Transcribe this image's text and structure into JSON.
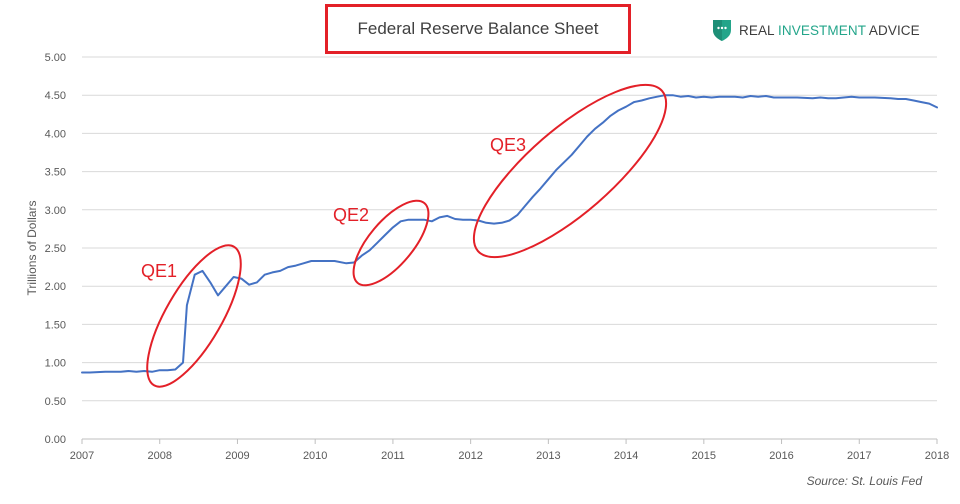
{
  "chart_data": {
    "type": "line",
    "title": "Federal Reserve Balance Sheet",
    "ylabel": "Trillions of Dollars",
    "xlabel": "",
    "xlim": [
      2007,
      2018
    ],
    "ylim": [
      0,
      5
    ],
    "x_ticks": [
      "2007",
      "2008",
      "2009",
      "2010",
      "2011",
      "2012",
      "2013",
      "2014",
      "2015",
      "2016",
      "2017",
      "2018"
    ],
    "y_ticks": [
      "0.00",
      "0.50",
      "1.00",
      "1.50",
      "2.00",
      "2.50",
      "3.00",
      "3.50",
      "4.00",
      "4.50",
      "5.00"
    ],
    "grid": "horizontal",
    "series": [
      {
        "color": "#4472c4",
        "x": [
          2007.0,
          2007.1,
          2007.3,
          2007.5,
          2007.6,
          2007.7,
          2007.8,
          2007.9,
          2008.0,
          2008.1,
          2008.2,
          2008.3,
          2008.35,
          2008.45,
          2008.55,
          2008.65,
          2008.75,
          2008.85,
          2008.95,
          2009.05,
          2009.15,
          2009.25,
          2009.35,
          2009.45,
          2009.55,
          2009.65,
          2009.75,
          2009.85,
          2009.95,
          2010.1,
          2010.25,
          2010.4,
          2010.5,
          2010.6,
          2010.7,
          2010.8,
          2010.9,
          2011.0,
          2011.1,
          2011.2,
          2011.3,
          2011.4,
          2011.5,
          2011.6,
          2011.7,
          2011.8,
          2011.9,
          2012.0,
          2012.1,
          2012.2,
          2012.3,
          2012.4,
          2012.5,
          2012.6,
          2012.7,
          2012.8,
          2012.9,
          2013.0,
          2013.1,
          2013.2,
          2013.3,
          2013.4,
          2013.5,
          2013.6,
          2013.7,
          2013.8,
          2013.9,
          2014.0,
          2014.1,
          2014.2,
          2014.3,
          2014.4,
          2014.5,
          2014.6,
          2014.7,
          2014.8,
          2014.9,
          2015.0,
          2015.1,
          2015.2,
          2015.3,
          2015.4,
          2015.5,
          2015.6,
          2015.7,
          2015.8,
          2015.9,
          2016.0,
          2016.2,
          2016.4,
          2016.5,
          2016.6,
          2016.7,
          2016.8,
          2016.9,
          2017.0,
          2017.2,
          2017.4,
          2017.5,
          2017.6,
          2017.7,
          2017.8,
          2017.9,
          2018.0
        ],
        "y": [
          0.87,
          0.87,
          0.88,
          0.88,
          0.89,
          0.88,
          0.89,
          0.88,
          0.9,
          0.9,
          0.91,
          1.0,
          1.75,
          2.15,
          2.2,
          2.05,
          1.88,
          2.0,
          2.12,
          2.1,
          2.02,
          2.05,
          2.15,
          2.18,
          2.2,
          2.25,
          2.27,
          2.3,
          2.33,
          2.33,
          2.33,
          2.3,
          2.31,
          2.4,
          2.47,
          2.57,
          2.67,
          2.77,
          2.85,
          2.87,
          2.87,
          2.87,
          2.85,
          2.9,
          2.92,
          2.88,
          2.87,
          2.87,
          2.86,
          2.83,
          2.82,
          2.83,
          2.86,
          2.93,
          3.05,
          3.17,
          3.28,
          3.4,
          3.52,
          3.62,
          3.72,
          3.84,
          3.96,
          4.06,
          4.14,
          4.23,
          4.3,
          4.35,
          4.41,
          4.43,
          4.46,
          4.48,
          4.5,
          4.5,
          4.48,
          4.49,
          4.47,
          4.48,
          4.47,
          4.48,
          4.48,
          4.48,
          4.47,
          4.49,
          4.48,
          4.49,
          4.47,
          4.47,
          4.47,
          4.46,
          4.47,
          4.46,
          4.46,
          4.47,
          4.48,
          4.47,
          4.47,
          4.46,
          4.45,
          4.45,
          4.43,
          4.41,
          4.39,
          4.34
        ]
      }
    ],
    "annotations": [
      {
        "text": "QE1",
        "x": 2008.65,
        "y": 1.55,
        "color": "#e32028"
      },
      {
        "text": "QE2",
        "x": 2010.9,
        "y": 2.65,
        "color": "#e32028"
      },
      {
        "text": "QE3",
        "x": 2013.65,
        "y": 3.45,
        "color": "#e32028"
      }
    ]
  },
  "brand": {
    "name_part1": "REAL ",
    "name_part2": "INVESTMENT",
    "name_part3": " ADVICE",
    "icon": "shield-logo-icon",
    "accent_color": "#23a58a"
  },
  "source_text": "Source: St. Louis Fed"
}
